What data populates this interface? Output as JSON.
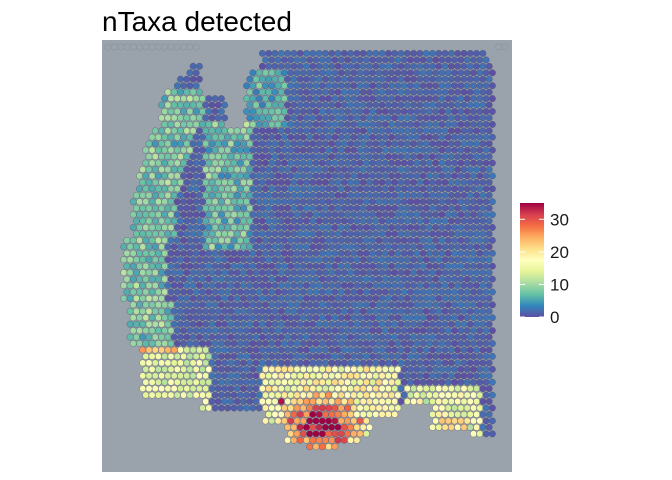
{
  "chart_data": {
    "type": "heatmap",
    "title": "nTaxa detected",
    "xlabel": "",
    "ylabel": "",
    "legend": {
      "position": "right",
      "ticks": [
        "0",
        "10",
        "20",
        "30"
      ],
      "tick_values": [
        0,
        10,
        20,
        30
      ],
      "range": [
        0,
        35
      ],
      "colormap": [
        "#5E4FA2",
        "#3288BD",
        "#66C2A5",
        "#ABDDA4",
        "#E6F598",
        "#FFFFBF",
        "#FEE08B",
        "#FDAE61",
        "#F46D43",
        "#D53E4F",
        "#9E0142"
      ]
    },
    "spot_grid": {
      "columns": 64,
      "rows": 66,
      "values": "estimated: mostly 0-3 across the tissue; 4-10 along left and upper-left margins; 12-25 in the lower band; 25-35 hotspots near bottom-center"
    },
    "hotspots": [
      {
        "col": 28,
        "row": 60,
        "value": 34
      },
      {
        "col": 33,
        "row": 62,
        "value": 32
      },
      {
        "col": 34,
        "row": 63,
        "value": 30
      },
      {
        "col": 35,
        "row": 64,
        "value": 28
      },
      {
        "col": 30,
        "row": 63,
        "value": 27
      },
      {
        "col": 31,
        "row": 65,
        "value": 25
      },
      {
        "col": 55,
        "row": 63,
        "value": 22
      },
      {
        "col": 27,
        "row": 58,
        "value": 24
      }
    ],
    "background_color": "#9aa2ab",
    "tissue_color": "#6b5f9e"
  }
}
